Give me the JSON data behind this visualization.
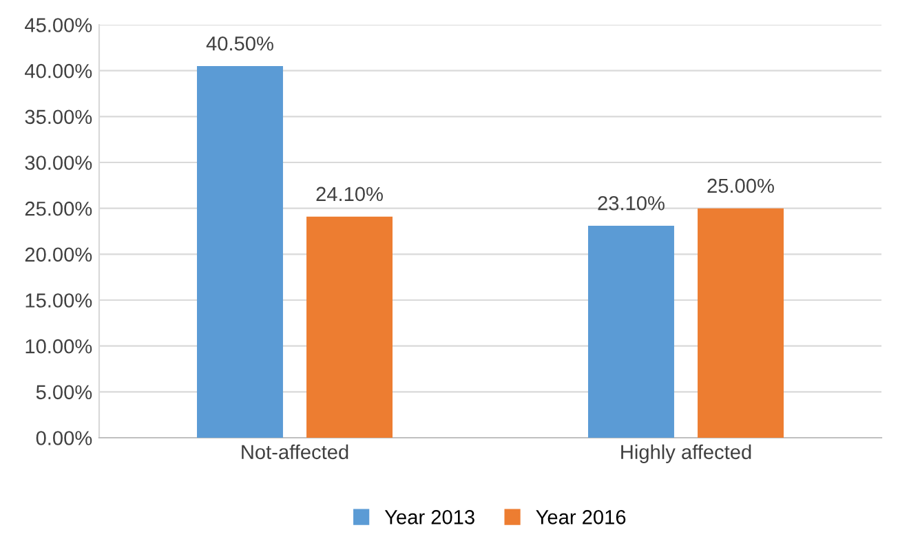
{
  "chart_data": {
    "type": "bar",
    "categories": [
      "Not-affected",
      "Highly affected"
    ],
    "series": [
      {
        "name": "Year 2013",
        "color": "#5b9bd5",
        "values": [
          40.5,
          23.1
        ],
        "value_labels": [
          "40.50%",
          "23.10%"
        ]
      },
      {
        "name": "Year 2016",
        "color": "#ed7d31",
        "values": [
          24.1,
          25.0
        ],
        "value_labels": [
          "24.10%",
          "25.00%"
        ]
      }
    ],
    "ylim": [
      0,
      45
    ],
    "yticks": [
      {
        "value": 0,
        "label": "0.00%"
      },
      {
        "value": 5,
        "label": "5.00%"
      },
      {
        "value": 10,
        "label": "10.00%"
      },
      {
        "value": 15,
        "label": "15.00%"
      },
      {
        "value": 20,
        "label": "20.00%"
      },
      {
        "value": 25,
        "label": "25.00%"
      },
      {
        "value": 30,
        "label": "30.00%"
      },
      {
        "value": 35,
        "label": "35.00%"
      },
      {
        "value": 40,
        "label": "40.00%"
      },
      {
        "value": 45,
        "label": "45.00%"
      }
    ],
    "grid": "y",
    "legend": "bottom"
  }
}
